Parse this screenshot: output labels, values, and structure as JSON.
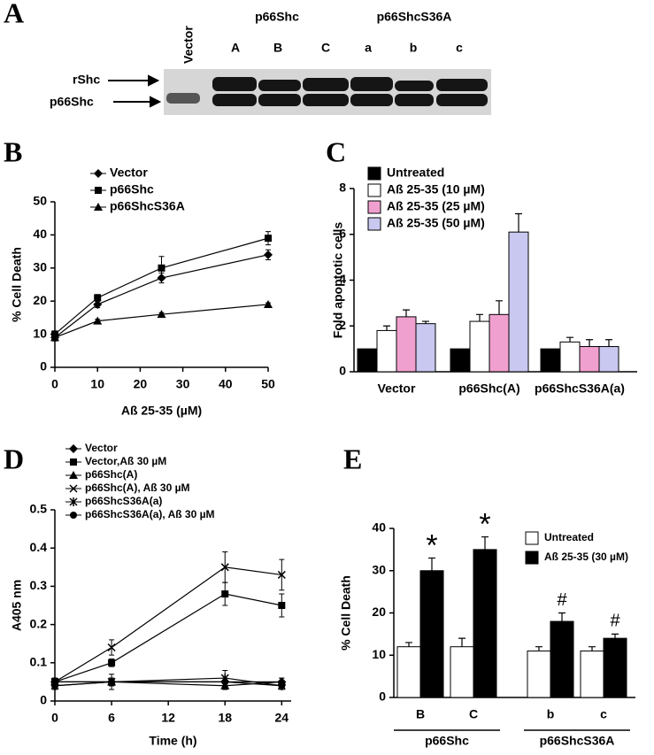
{
  "panel_labels": [
    "A",
    "B",
    "C",
    "D",
    "E"
  ],
  "blot": {
    "group_labels": [
      "Vector",
      "p66Shc",
      "p66ShcS36A"
    ],
    "lanes": [
      "A",
      "B",
      "C",
      "a",
      "b",
      "c"
    ],
    "band_labels": [
      "rShc",
      "p66Shc"
    ]
  },
  "chart_data": [
    {
      "type": "line",
      "x": [
        0,
        10,
        25,
        50
      ],
      "xlim": [
        0,
        50
      ],
      "xticks": [
        0,
        10,
        20,
        30,
        40,
        50
      ],
      "ylim": [
        0,
        50
      ],
      "yticks": [
        0,
        10,
        20,
        30,
        40,
        50
      ],
      "xlabel": "Aß 25-35 (µM)",
      "ylabel": "% Cell Death",
      "series": [
        {
          "name": "Vector",
          "color": "#000000",
          "marker": "diamond",
          "values": [
            9,
            19,
            27,
            34
          ],
          "errors": [
            1,
            1,
            1.5,
            1.5
          ]
        },
        {
          "name": "p66Shc",
          "color": "#000000",
          "marker": "square",
          "values": [
            10,
            21,
            30,
            39
          ],
          "errors": [
            1,
            1,
            3.5,
            2
          ]
        },
        {
          "name": "p66ShcS36A",
          "color": "#000000",
          "marker": "triangle",
          "values": [
            9,
            14,
            16,
            19
          ],
          "errors": [
            1,
            0.5,
            0.5,
            0.5
          ]
        }
      ]
    },
    {
      "type": "bar",
      "categories": [
        "Vector",
        "p66Shc(A)",
        "p66ShcS36A(a)"
      ],
      "ylim": [
        0,
        8
      ],
      "yticks": [
        0,
        2,
        4,
        6,
        8
      ],
      "ylabel": "Fold apoptotic cells",
      "series": [
        {
          "name": "Untreated",
          "color": "#000000",
          "values": [
            1,
            1,
            1
          ]
        },
        {
          "name": "Aß 25-35 (10 µM)",
          "color": "#ffffff",
          "values": [
            1.8,
            2.2,
            1.3
          ],
          "errors": [
            0.2,
            0.3,
            0.2
          ]
        },
        {
          "name": "Aß 25-35 (25 µM)",
          "color": "#f0a0cf",
          "values": [
            2.4,
            2.5,
            1.1
          ],
          "errors": [
            0.3,
            0.6,
            0.3
          ]
        },
        {
          "name": "Aß 25-35 (50 µM)",
          "color": "#c8c8f0",
          "values": [
            2.1,
            6.1,
            1.1
          ],
          "errors": [
            0.1,
            0.8,
            0.3
          ]
        }
      ]
    },
    {
      "type": "line",
      "x": [
        0,
        6,
        18,
        24
      ],
      "xlim": [
        0,
        25
      ],
      "xticks": [
        0,
        6,
        12,
        18,
        24
      ],
      "ylim": [
        0,
        0.5
      ],
      "yticks": [
        0,
        0.1,
        0.2,
        0.3,
        0.4,
        0.5
      ],
      "xlabel": "Time (h)",
      "ylabel": "A405 nm",
      "series": [
        {
          "name": "Vector",
          "color": "#000000",
          "marker": "diamond",
          "values": [
            0.05,
            0.05,
            0.05,
            0.05
          ],
          "errors": [
            0.01,
            0.01,
            0.01,
            0.01
          ]
        },
        {
          "name": "Vector,Aß 30 µM",
          "color": "#000000",
          "marker": "square",
          "values": [
            0.05,
            0.1,
            0.28,
            0.25
          ],
          "errors": [
            0.01,
            0.01,
            0.03,
            0.03
          ]
        },
        {
          "name": "p66Shc(A)",
          "color": "#000000",
          "marker": "triangle",
          "values": [
            0.05,
            0.05,
            0.04,
            0.05
          ],
          "errors": [
            0.01,
            0.01,
            0.01,
            0.01
          ]
        },
        {
          "name": "p66Shc(A), Aß 30 µM",
          "color": "#000000",
          "marker": "x",
          "values": [
            0.05,
            0.14,
            0.35,
            0.33
          ],
          "errors": [
            0.01,
            0.02,
            0.04,
            0.04
          ]
        },
        {
          "name": "p66ShcS36A(a)",
          "color": "#000000",
          "marker": "asterisk",
          "values": [
            0.04,
            0.05,
            0.06,
            0.04
          ],
          "errors": [
            0.01,
            0.02,
            0.02,
            0.01
          ]
        },
        {
          "name": "p66ShcS36A(a), Aß 30 µM",
          "color": "#000000",
          "marker": "circle",
          "values": [
            0.04,
            0.05,
            0.05,
            0.04
          ],
          "errors": [
            0.01,
            0.01,
            0.01,
            0.01
          ]
        }
      ]
    },
    {
      "type": "bar",
      "categories": [
        "B",
        "C",
        "b",
        "c"
      ],
      "groups": [
        "p66Shc",
        "p66ShcS36A"
      ],
      "ylim": [
        0,
        40
      ],
      "yticks": [
        0,
        10,
        20,
        30,
        40
      ],
      "ylabel": "% Cell Death",
      "series": [
        {
          "name": "Untreated",
          "color": "#ffffff",
          "values": [
            12,
            12,
            11,
            11
          ],
          "errors": [
            1,
            2,
            1,
            1
          ]
        },
        {
          "name": "Aß 25-35 (30 µM)",
          "color": "#000000",
          "values": [
            30,
            35,
            18,
            14
          ],
          "errors": [
            3,
            3,
            2,
            1
          ],
          "annotations": [
            "*",
            "*",
            "#",
            "#"
          ]
        }
      ]
    }
  ]
}
